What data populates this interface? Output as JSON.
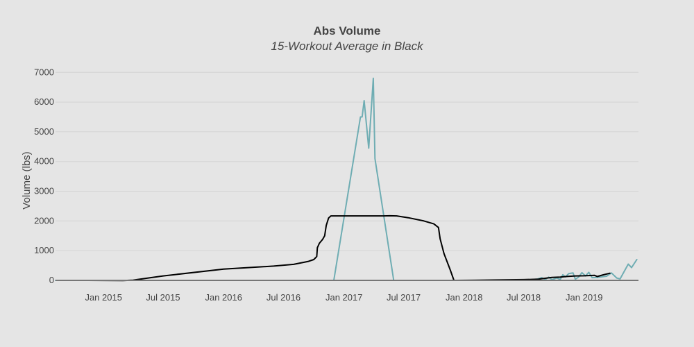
{
  "chart_data": {
    "type": "line",
    "title": "Abs Volume",
    "subtitle": "15-Workout Average in Black",
    "xlabel": "",
    "ylabel": "Volume (lbs)",
    "ylim": [
      0,
      7100
    ],
    "xlim": [
      "2014-08-08",
      "2019-06-15"
    ],
    "grid": true,
    "x_ticks": [
      {
        "date": "2015-01-01",
        "label": "Jan 2015"
      },
      {
        "date": "2015-07-01",
        "label": "Jul 2015"
      },
      {
        "date": "2016-01-01",
        "label": "Jan 2016"
      },
      {
        "date": "2016-07-01",
        "label": "Jul 2016"
      },
      {
        "date": "2017-01-01",
        "label": "Jan 2017"
      },
      {
        "date": "2017-07-01",
        "label": "Jul 2017"
      },
      {
        "date": "2018-01-01",
        "label": "Jan 2018"
      },
      {
        "date": "2018-07-01",
        "label": "Jul 2018"
      },
      {
        "date": "2019-01-01",
        "label": "Jan 2019"
      }
    ],
    "y_ticks": [
      {
        "value": 0,
        "label": "0"
      },
      {
        "value": 1000,
        "label": "1000"
      },
      {
        "value": 2000,
        "label": "2000"
      },
      {
        "value": 3000,
        "label": "3000"
      },
      {
        "value": 4000,
        "label": "4000"
      },
      {
        "value": 5000,
        "label": "5000"
      },
      {
        "value": 6000,
        "label": "6000"
      },
      {
        "value": 7000,
        "label": "7000"
      }
    ],
    "series": [
      {
        "color": "#6fadb3",
        "width": 2,
        "points": [
          [
            "2014-08-08",
            0
          ],
          [
            "2016-12-01",
            0
          ],
          [
            "2017-02-20",
            5500
          ],
          [
            "2017-02-25",
            5500
          ],
          [
            "2017-03-03",
            6050
          ],
          [
            "2017-03-17",
            4450
          ],
          [
            "2017-03-31",
            6800
          ],
          [
            "2017-04-05",
            4100
          ],
          [
            "2017-06-01",
            0
          ],
          [
            "2018-05-01",
            0
          ],
          [
            "2018-07-01",
            10
          ],
          [
            "2018-08-10",
            40
          ],
          [
            "2018-08-25",
            90
          ],
          [
            "2018-09-05",
            30
          ],
          [
            "2018-09-15",
            110
          ],
          [
            "2018-09-25",
            20
          ],
          [
            "2018-10-10",
            80
          ],
          [
            "2018-10-20",
            30
          ],
          [
            "2018-10-28",
            190
          ],
          [
            "2018-11-05",
            120
          ],
          [
            "2018-11-15",
            230
          ],
          [
            "2018-11-28",
            250
          ],
          [
            "2018-12-05",
            40
          ],
          [
            "2018-12-15",
            110
          ],
          [
            "2018-12-25",
            260
          ],
          [
            "2019-01-05",
            150
          ],
          [
            "2019-01-15",
            270
          ],
          [
            "2019-01-25",
            90
          ],
          [
            "2019-02-10",
            100
          ],
          [
            "2019-03-10",
            140
          ],
          [
            "2019-03-25",
            250
          ],
          [
            "2019-04-10",
            80
          ],
          [
            "2019-04-20",
            50
          ],
          [
            "2019-05-15",
            550
          ],
          [
            "2019-05-25",
            430
          ],
          [
            "2019-06-10",
            700
          ]
        ]
      },
      {
        "color": "#000000",
        "width": 2,
        "points": [
          [
            "2014-11-05",
            0
          ],
          [
            "2015-03-01",
            -5
          ],
          [
            "2015-04-01",
            10
          ],
          [
            "2015-07-01",
            150
          ],
          [
            "2016-01-01",
            380
          ],
          [
            "2016-06-01",
            480
          ],
          [
            "2016-08-01",
            540
          ],
          [
            "2016-09-15",
            640
          ],
          [
            "2016-10-01",
            700
          ],
          [
            "2016-10-10",
            800
          ],
          [
            "2016-10-12",
            1100
          ],
          [
            "2016-10-18",
            1250
          ],
          [
            "2016-10-28",
            1380
          ],
          [
            "2016-11-03",
            1500
          ],
          [
            "2016-11-08",
            1850
          ],
          [
            "2016-11-15",
            2100
          ],
          [
            "2016-11-22",
            2170
          ],
          [
            "2017-01-01",
            2170
          ],
          [
            "2017-05-01",
            2170
          ],
          [
            "2017-05-20",
            2175
          ],
          [
            "2017-06-10",
            2170
          ],
          [
            "2017-07-15",
            2110
          ],
          [
            "2017-09-01",
            2000
          ],
          [
            "2017-10-01",
            1900
          ],
          [
            "2017-10-15",
            1780
          ],
          [
            "2017-10-20",
            1400
          ],
          [
            "2017-11-01",
            900
          ],
          [
            "2017-11-20",
            350
          ],
          [
            "2017-12-01",
            0
          ],
          [
            "2018-02-01",
            5
          ],
          [
            "2018-04-01",
            15
          ],
          [
            "2018-07-01",
            25
          ],
          [
            "2018-08-15",
            40
          ],
          [
            "2018-09-10",
            80
          ],
          [
            "2018-09-25",
            100
          ],
          [
            "2018-10-20",
            110
          ],
          [
            "2018-11-10",
            130
          ],
          [
            "2018-12-05",
            150
          ],
          [
            "2019-01-01",
            155
          ],
          [
            "2019-02-01",
            170
          ],
          [
            "2019-02-10",
            130
          ],
          [
            "2019-03-01",
            190
          ],
          [
            "2019-03-20",
            240
          ]
        ]
      }
    ]
  }
}
